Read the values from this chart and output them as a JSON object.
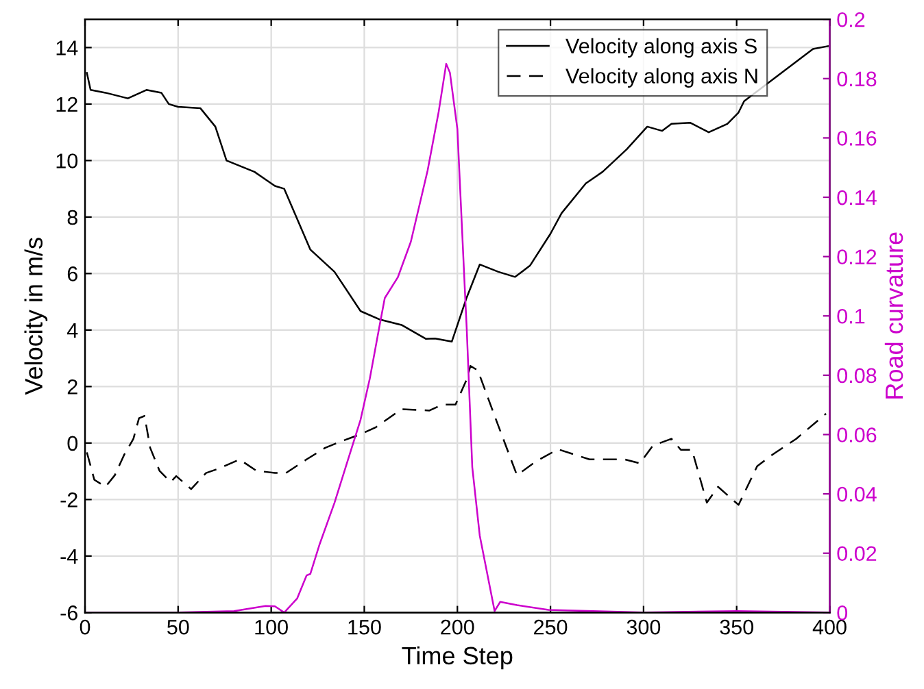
{
  "chart_data": {
    "type": "line",
    "xlabel": "Time Step",
    "ylabel": "Velocity in m/s",
    "y2label": "Road curvature",
    "xlim": [
      0,
      400
    ],
    "xticks": [
      0,
      50,
      100,
      150,
      200,
      250,
      300,
      350,
      400
    ],
    "ylim": [
      -6,
      15
    ],
    "yticks": [
      -6,
      -4,
      -2,
      0,
      2,
      4,
      6,
      8,
      10,
      12,
      14
    ],
    "y2lim": [
      0,
      0.2
    ],
    "y2ticks": [
      0,
      0.02,
      0.04,
      0.06,
      0.08,
      0.1,
      0.12,
      0.14,
      0.16,
      0.18,
      0.2
    ],
    "grid": true,
    "legend": "top right",
    "series": [
      {
        "name": "Velocity along axis S",
        "color": "#000000",
        "line_style": "solid",
        "x": [
          1,
          3,
          11,
          23,
          33,
          41,
          45,
          50,
          62,
          70,
          76,
          91,
          102,
          107,
          121,
          134,
          148,
          158,
          170,
          183,
          188,
          197,
          205,
          212,
          222,
          231,
          239,
          250,
          256,
          269,
          278,
          291,
          302,
          310,
          315,
          325,
          335,
          345,
          351,
          354,
          391,
          399
        ],
        "values": [
          13.1,
          12.5,
          12.4,
          12.2,
          12.5,
          12.4,
          12.0,
          11.9,
          11.85,
          11.2,
          10.0,
          9.6,
          9.1,
          9.0,
          6.85,
          6.06,
          4.67,
          4.38,
          4.18,
          3.69,
          3.7,
          3.59,
          5.15,
          6.32,
          6.06,
          5.88,
          6.28,
          7.41,
          8.14,
          9.19,
          9.6,
          10.4,
          11.2,
          11.05,
          11.3,
          11.34,
          11.0,
          11.3,
          11.7,
          12.1,
          13.95,
          14.05
        ]
      },
      {
        "name": "Velocity along axis N",
        "color": "#000000",
        "line_style": "dashed",
        "x": [
          1,
          5,
          11,
          16,
          21,
          26,
          29,
          32,
          35,
          40,
          46,
          49,
          57,
          65,
          72,
          83,
          92,
          102,
          108,
          119,
          129,
          138,
          148,
          156,
          170,
          185,
          192,
          199,
          205,
          207,
          211,
          220,
          232,
          242,
          254,
          271,
          290,
          298,
          305,
          315,
          320,
          326,
          334,
          340,
          351,
          361,
          369,
          382,
          398
        ],
        "values": [
          -0.33,
          -1.3,
          -1.55,
          -1.14,
          -0.42,
          0.15,
          0.88,
          0.96,
          -0.17,
          -0.98,
          -1.38,
          -1.17,
          -1.63,
          -1.06,
          -0.9,
          -0.58,
          -0.98,
          -1.06,
          -1.06,
          -0.58,
          -0.17,
          0.07,
          0.31,
          0.55,
          1.2,
          1.15,
          1.36,
          1.36,
          2.25,
          2.73,
          2.57,
          0.96,
          -1.14,
          -0.66,
          -0.22,
          -0.58,
          -0.58,
          -0.72,
          -0.09,
          0.15,
          -0.24,
          -0.24,
          -2.11,
          -1.55,
          -2.19,
          -0.82,
          -0.42,
          0.15,
          1.04
        ]
      },
      {
        "color": "#cc00cc",
        "axis": "y2",
        "line_style": "solid",
        "x": [
          0,
          50,
          80,
          97,
          102,
          107,
          114,
          119,
          121,
          126,
          134,
          141,
          148,
          153,
          158,
          161,
          168,
          175,
          184,
          190,
          194,
          196,
          200,
          204,
          205,
          208,
          212,
          220,
          223,
          232,
          249,
          300,
          350,
          400
        ],
        "values": [
          0,
          0,
          0.0005,
          0.0022,
          0.0021,
          0,
          0.0048,
          0.0125,
          0.013,
          0.023,
          0.037,
          0.051,
          0.065,
          0.079,
          0.096,
          0.106,
          0.113,
          0.125,
          0.149,
          0.169,
          0.185,
          0.182,
          0.163,
          0.109,
          0.096,
          0.049,
          0.026,
          0.0005,
          0.0036,
          0.0025,
          0.0009,
          0,
          0.0005,
          0
        ]
      }
    ]
  }
}
